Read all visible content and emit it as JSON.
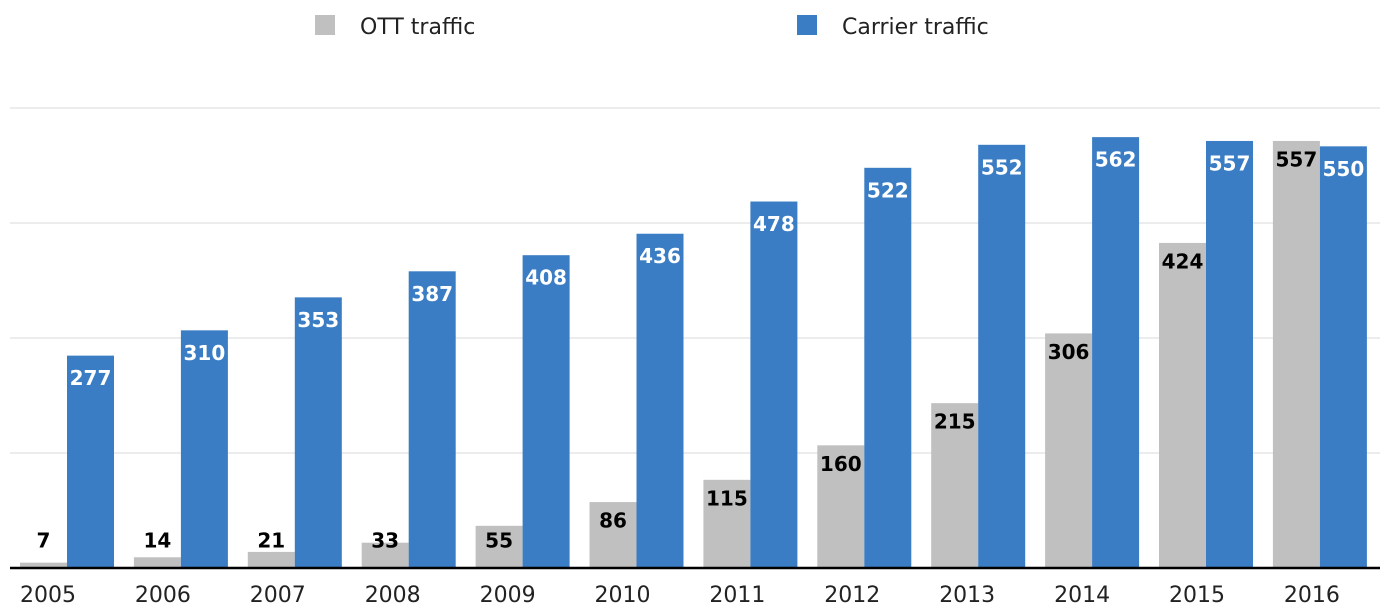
{
  "chart_data": {
    "type": "bar",
    "categories": [
      "2005",
      "2006",
      "2007",
      "2008",
      "2009",
      "2010",
      "2011",
      "2012",
      "2013",
      "2014",
      "2015",
      "2016"
    ],
    "series": [
      {
        "name": "OTT traffic",
        "color": "#c0c0c0",
        "values": [
          7,
          14,
          21,
          33,
          55,
          86,
          115,
          160,
          215,
          306,
          424,
          557
        ]
      },
      {
        "name": "Carrier traffic",
        "color": "#3a7dc4",
        "values": [
          277,
          310,
          353,
          387,
          408,
          436,
          478,
          522,
          552,
          562,
          557,
          550
        ]
      }
    ],
    "ylim": [
      0,
      600
    ],
    "yticks": [
      0,
      150,
      300,
      450,
      600
    ],
    "grid": true,
    "legend": "top"
  }
}
